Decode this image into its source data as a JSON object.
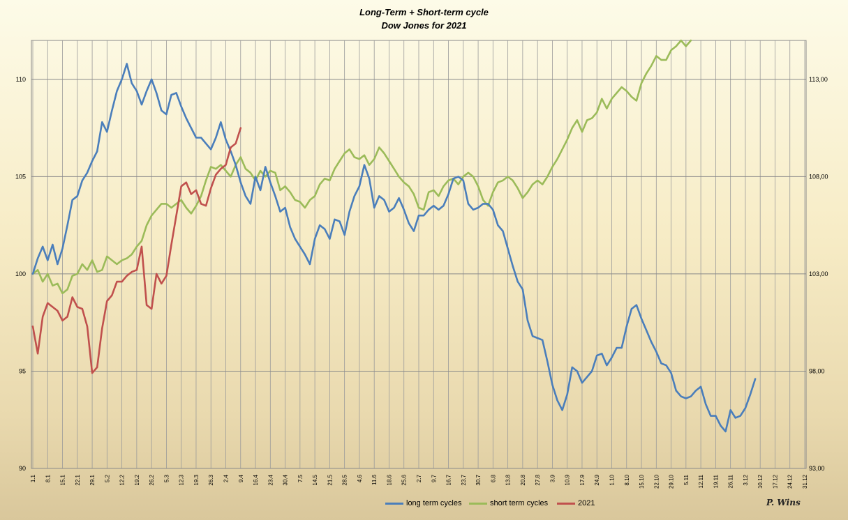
{
  "chart_data": {
    "type": "line",
    "title": "Long-Term + Short-term cycle",
    "subtitle": "Dow Jones for 2021",
    "x_tick_labels": [
      "1.1",
      "8.1",
      "15.1",
      "22.1",
      "29.1",
      "5.2",
      "12.2",
      "19.2",
      "26.2",
      "5.3",
      "12.3",
      "19.3",
      "26.3",
      "2.4",
      "9.4",
      "16.4",
      "23.4",
      "30.4",
      "7.5",
      "14.5",
      "21.5",
      "28.5",
      "4.6",
      "11.6",
      "18.6",
      "25.6",
      "2.7",
      "9.7",
      "16.7",
      "23.7",
      "30.7",
      "6.8",
      "13.8",
      "20.8",
      "27.8",
      "3.9",
      "10.9",
      "17.9",
      "24.9",
      "1.10",
      "8.10",
      "15.10",
      "22.10",
      "29.10",
      "5.11",
      "12.11",
      "19.11",
      "26.11",
      "3.12",
      "10.12",
      "17.12",
      "24.12",
      "31.12"
    ],
    "y_left": {
      "min": 90,
      "max": 112,
      "ticks": [
        90,
        95,
        100,
        105,
        110
      ],
      "labels": [
        "90",
        "95",
        "100",
        "105",
        "110"
      ]
    },
    "y_right": {
      "min": 93,
      "max": 115,
      "ticks": [
        93,
        98,
        103,
        108,
        113
      ],
      "labels": [
        "93,00",
        "98,00",
        "103,00",
        "108,00",
        "113,00"
      ]
    },
    "grid": true,
    "legend_position": "bottom-center",
    "series": [
      {
        "name": "long term cycles",
        "axis": "left",
        "color": "#4a7ebb",
        "values": [
          100,
          100.8,
          101.4,
          100.7,
          101.5,
          100.5,
          101.3,
          102.5,
          103.8,
          104,
          104.8,
          105.2,
          105.8,
          106.3,
          107.8,
          107.3,
          108.4,
          109.4,
          110,
          110.8,
          109.8,
          109.4,
          108.7,
          109.4,
          110,
          109.3,
          108.4,
          108.2,
          109.2,
          109.3,
          108.6,
          108,
          107.5,
          107,
          107,
          106.7,
          106.4,
          107,
          107.8,
          106.9,
          106.3,
          105.6,
          104.7,
          104,
          103.6,
          105,
          104.3,
          105.5,
          104.7,
          104,
          103.2,
          103.4,
          102.4,
          101.8,
          101.4,
          101,
          100.5,
          101.8,
          102.5,
          102.3,
          101.8,
          102.8,
          102.7,
          102,
          103.2,
          104,
          104.5,
          105.6,
          104.9,
          103.4,
          104,
          103.8,
          103.2,
          103.4,
          103.9,
          103.3,
          102.6,
          102.2,
          103,
          103,
          103.3,
          103.5,
          103.3,
          103.5,
          104.1,
          104.9,
          105,
          104.8,
          103.6,
          103.3,
          103.4,
          103.6,
          103.6,
          103.3,
          102.5,
          102.2,
          101.3,
          100.4,
          99.6,
          99.2,
          97.6,
          96.8,
          96.7,
          96.6,
          95.5,
          94.3,
          93.5,
          93,
          93.8,
          95.2,
          95,
          94.4,
          94.7,
          95,
          95.8,
          95.9,
          95.3,
          95.7,
          96.2,
          96.2,
          97.3,
          98.2,
          98.4,
          97.7,
          97.1,
          96.5,
          96,
          95.4,
          95.3,
          94.9,
          94,
          93.7,
          93.6,
          93.7,
          94,
          94.2,
          93.3,
          92.7,
          92.7,
          92.2,
          91.9,
          93,
          92.6,
          92.7,
          93.1,
          93.8,
          94.6
        ]
      },
      {
        "name": "short term cycles",
        "axis": "right",
        "color": "#9bbb59",
        "values": [
          103,
          103.2,
          102.6,
          103,
          102.4,
          102.5,
          102,
          102.2,
          102.9,
          103,
          103.5,
          103.2,
          103.7,
          103.1,
          103.2,
          103.9,
          103.7,
          103.5,
          103.7,
          103.8,
          104,
          104.4,
          104.7,
          105.5,
          106,
          106.3,
          106.6,
          106.6,
          106.4,
          106.6,
          106.8,
          106.4,
          106.1,
          106.5,
          107,
          107.8,
          108.5,
          108.4,
          108.6,
          108.3,
          108,
          108.6,
          109,
          108.4,
          108.2,
          107.8,
          108.3,
          108,
          108.3,
          108.2,
          107.3,
          107.5,
          107.2,
          106.8,
          106.7,
          106.4,
          106.8,
          107,
          107.6,
          107.9,
          107.8,
          108.4,
          108.8,
          109.2,
          109.4,
          109,
          108.9,
          109.1,
          108.6,
          108.9,
          109.5,
          109.2,
          108.8,
          108.4,
          108,
          107.7,
          107.5,
          107.1,
          106.4,
          106.3,
          107.2,
          107.3,
          107,
          107.5,
          107.8,
          107.9,
          107.6,
          108,
          108.2,
          108,
          107.5,
          106.8,
          106.5,
          107.2,
          107.7,
          107.8,
          108,
          107.8,
          107.4,
          106.9,
          107.2,
          107.6,
          107.8,
          107.6,
          108,
          108.5,
          108.9,
          109.4,
          109.9,
          110.5,
          110.9,
          110.3,
          110.9,
          111,
          111.3,
          112,
          111.5,
          112,
          112.3,
          112.6,
          112.4,
          112.1,
          111.9,
          112.8,
          113.3,
          113.7,
          114.2,
          114,
          114,
          114.5,
          114.7,
          115,
          114.7,
          115
        ]
      },
      {
        "name": "2021",
        "axis": "left",
        "color": "#c0504d",
        "values": [
          97.3,
          95.9,
          97.8,
          98.5,
          98.3,
          98.1,
          97.6,
          97.8,
          98.8,
          98.3,
          98.2,
          97.3,
          94.9,
          95.2,
          97.2,
          98.6,
          98.9,
          99.6,
          99.6,
          99.9,
          100.1,
          100.2,
          101.4,
          98.4,
          98.2,
          100,
          99.5,
          99.9,
          101.5,
          103,
          104.5,
          104.7,
          104.1,
          104.3,
          103.6,
          103.5,
          104.4,
          105.1,
          105.4,
          105.6,
          106.5,
          106.7,
          107.5
        ]
      }
    ],
    "signature": "P. Wins"
  }
}
